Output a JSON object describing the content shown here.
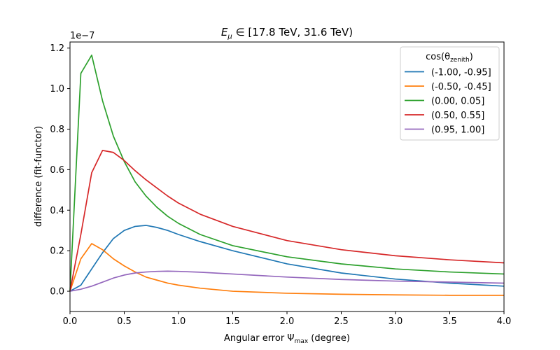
{
  "chart_data": {
    "type": "line",
    "title": {
      "prefix": "E",
      "sub": "μ",
      "rest": " ∈ [17.8 TeV, 31.6 TeV)"
    },
    "xlabel": {
      "main": "Angular error Ψ",
      "sub": "max",
      "suffix": " (degree)"
    },
    "ylabel": "difference (fit-functor)",
    "y_offset_label": "1e−7",
    "xlim": [
      0.0,
      4.0
    ],
    "ylim": [
      -0.1,
      1.23
    ],
    "xticks": [
      0.0,
      0.5,
      1.0,
      1.5,
      2.0,
      2.5,
      3.0,
      3.5,
      4.0
    ],
    "xtick_labels": [
      "0.0",
      "0.5",
      "1.0",
      "1.5",
      "2.0",
      "2.5",
      "3.0",
      "3.5",
      "4.0"
    ],
    "yticks": [
      0.0,
      0.2,
      0.4,
      0.6,
      0.8,
      1.0,
      1.2
    ],
    "ytick_labels": [
      "0.0",
      "0.2",
      "0.4",
      "0.6",
      "0.8",
      "1.0",
      "1.2"
    ],
    "grid": false,
    "legend": {
      "placement": "top-right",
      "title_main": "cos(θ",
      "title_sub": "zenith",
      "title_close": ")"
    },
    "series": [
      {
        "name": "(-1.00, -0.95]",
        "color": "#1f77b4",
        "x": [
          0,
          0.1,
          0.2,
          0.3,
          0.4,
          0.5,
          0.6,
          0.7,
          0.8,
          0.9,
          1.0,
          1.2,
          1.5,
          2.0,
          2.5,
          3.0,
          3.5,
          4.0
        ],
        "y": [
          0.0,
          0.03,
          0.11,
          0.19,
          0.26,
          0.3,
          0.32,
          0.325,
          0.315,
          0.3,
          0.28,
          0.245,
          0.2,
          0.135,
          0.09,
          0.06,
          0.04,
          0.025
        ]
      },
      {
        "name": "(-0.50, -0.45]",
        "color": "#ff7f0e",
        "x": [
          0,
          0.1,
          0.2,
          0.3,
          0.4,
          0.5,
          0.6,
          0.7,
          0.8,
          0.9,
          1.0,
          1.2,
          1.5,
          2.0,
          2.5,
          3.0,
          3.5,
          4.0
        ],
        "y": [
          0.0,
          0.16,
          0.235,
          0.205,
          0.16,
          0.125,
          0.095,
          0.07,
          0.055,
          0.04,
          0.03,
          0.015,
          0.0,
          -0.01,
          -0.015,
          -0.018,
          -0.02,
          -0.02
        ]
      },
      {
        "name": "(0.00, 0.05]",
        "color": "#2ca02c",
        "x": [
          0,
          0.1,
          0.2,
          0.3,
          0.4,
          0.5,
          0.6,
          0.7,
          0.8,
          0.9,
          1.0,
          1.2,
          1.5,
          2.0,
          2.5,
          3.0,
          3.5,
          4.0
        ],
        "y": [
          0.0,
          1.075,
          1.165,
          0.94,
          0.765,
          0.64,
          0.54,
          0.47,
          0.415,
          0.37,
          0.335,
          0.28,
          0.225,
          0.17,
          0.135,
          0.11,
          0.095,
          0.085
        ]
      },
      {
        "name": "(0.50, 0.55]",
        "color": "#d62728",
        "x": [
          0,
          0.1,
          0.2,
          0.3,
          0.4,
          0.5,
          0.6,
          0.7,
          0.8,
          0.9,
          1.0,
          1.2,
          1.5,
          2.0,
          2.5,
          3.0,
          3.5,
          4.0
        ],
        "y": [
          0.0,
          0.28,
          0.585,
          0.695,
          0.685,
          0.645,
          0.595,
          0.55,
          0.51,
          0.47,
          0.435,
          0.38,
          0.32,
          0.25,
          0.205,
          0.175,
          0.155,
          0.14
        ]
      },
      {
        "name": "(0.95, 1.00]",
        "color": "#9467bd",
        "x": [
          0,
          0.1,
          0.2,
          0.3,
          0.4,
          0.5,
          0.6,
          0.7,
          0.8,
          0.9,
          1.0,
          1.2,
          1.5,
          2.0,
          2.5,
          3.0,
          3.5,
          4.0
        ],
        "y": [
          0.0,
          0.01,
          0.025,
          0.045,
          0.065,
          0.08,
          0.09,
          0.095,
          0.098,
          0.099,
          0.098,
          0.094,
          0.085,
          0.07,
          0.058,
          0.05,
          0.045,
          0.04
        ]
      }
    ]
  }
}
